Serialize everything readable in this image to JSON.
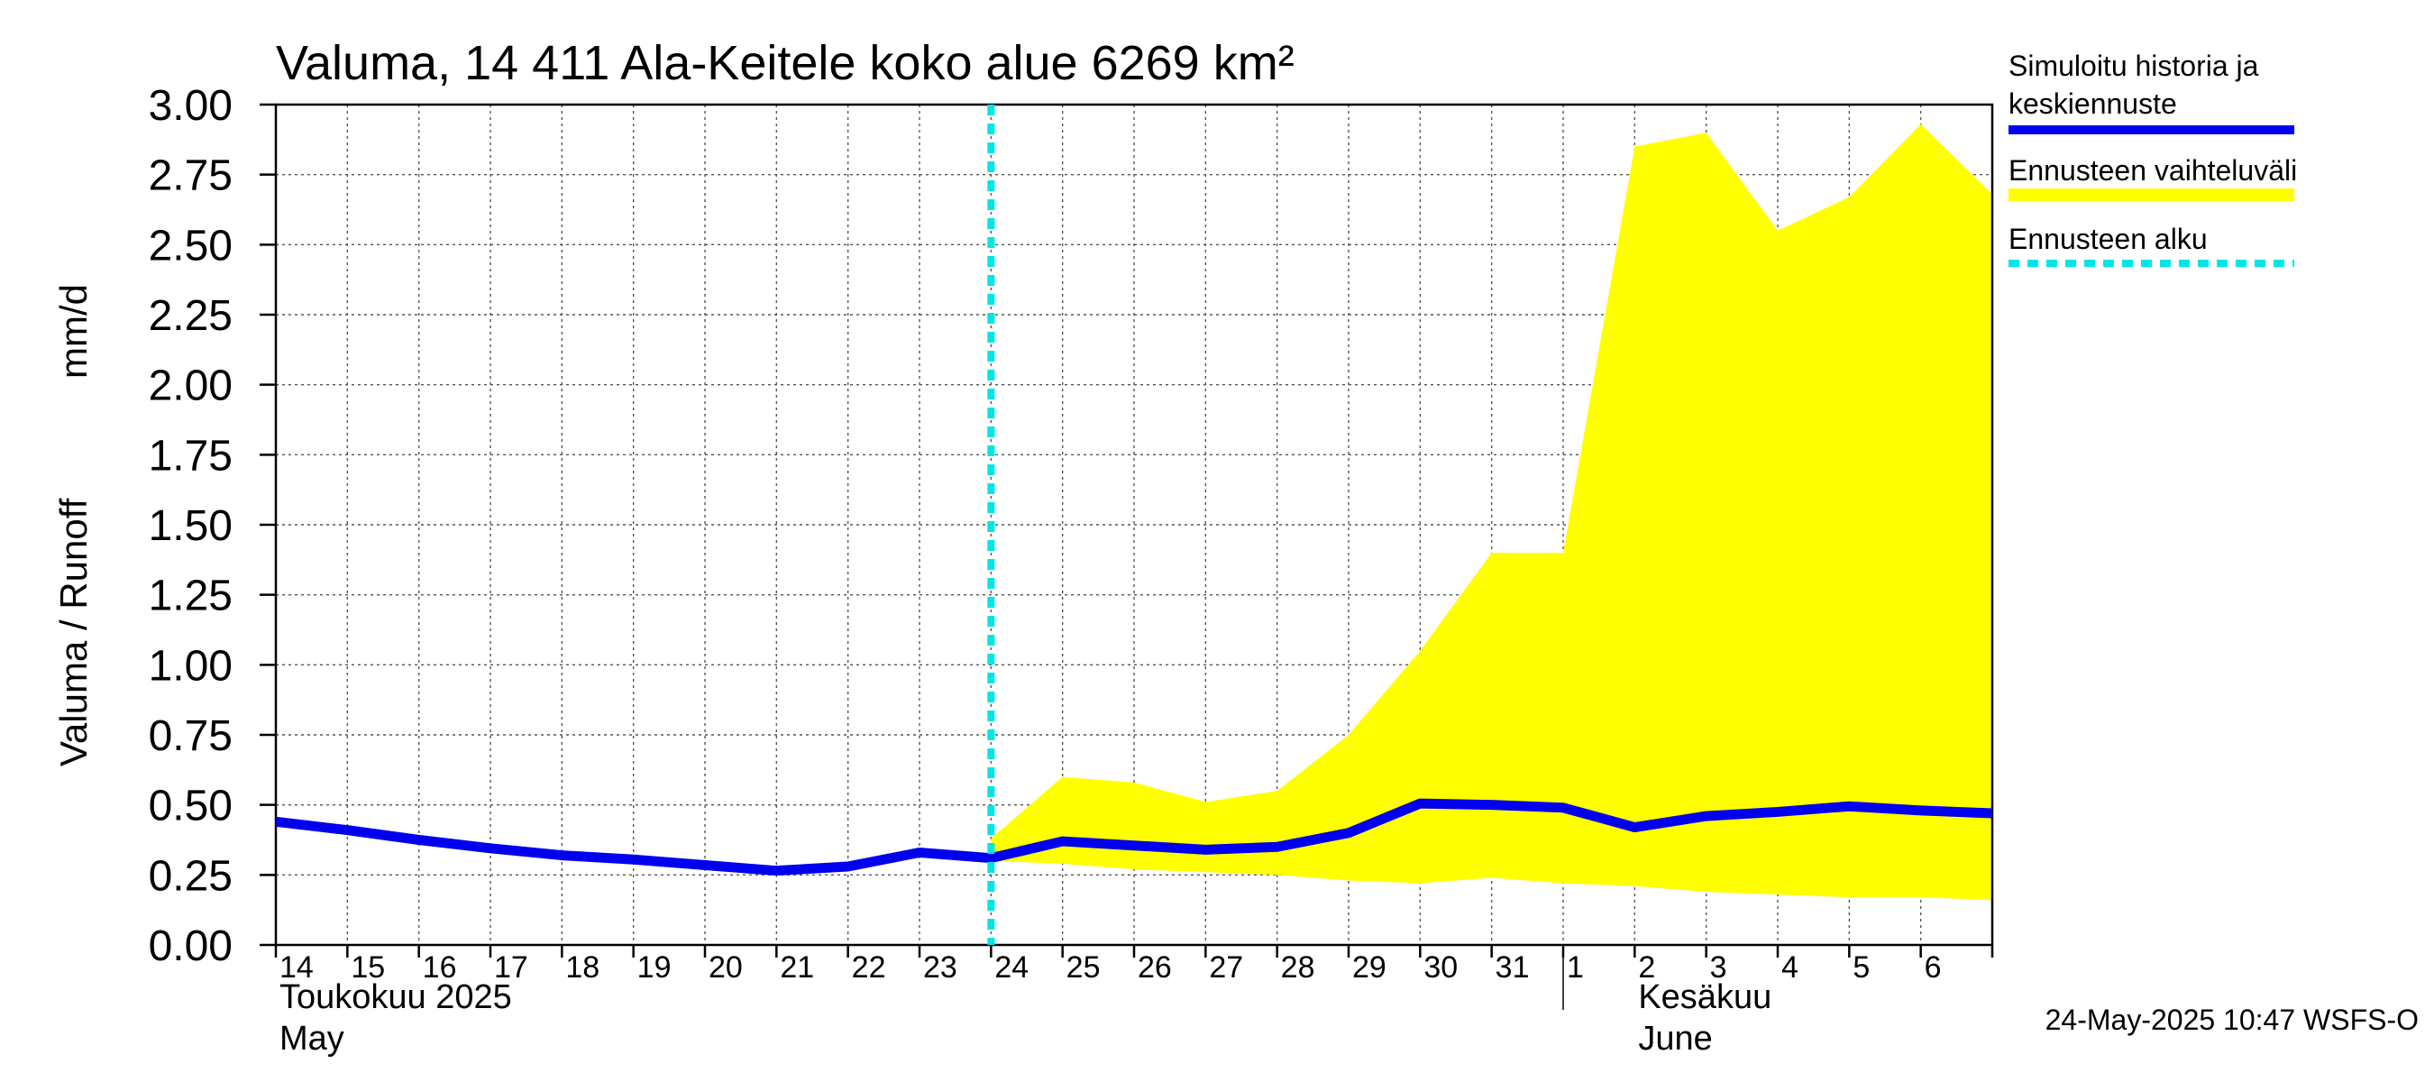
{
  "chart_data": {
    "type": "line",
    "title": "Valuma, 14 411 Ala-Keitele koko alue 6269 km²",
    "ylabel_left": "Valuma / Runoff",
    "ylabel_unit": "mm/d",
    "ylim": [
      0,
      3.0
    ],
    "yticks": [
      0.0,
      0.25,
      0.5,
      0.75,
      1.0,
      1.25,
      1.5,
      1.75,
      2.0,
      2.25,
      2.5,
      2.75,
      3.0
    ],
    "ytick_labels": [
      "0.00",
      "0.25",
      "0.50",
      "0.75",
      "1.00",
      "1.25",
      "1.50",
      "1.75",
      "2.00",
      "2.25",
      "2.50",
      "2.75",
      "3.00"
    ],
    "x_day_start": 0,
    "x_day_end": 24,
    "x_labels": [
      {
        "day": 0,
        "label": "14"
      },
      {
        "day": 1,
        "label": "15"
      },
      {
        "day": 2,
        "label": "16"
      },
      {
        "day": 3,
        "label": "17"
      },
      {
        "day": 4,
        "label": "18"
      },
      {
        "day": 5,
        "label": "19"
      },
      {
        "day": 6,
        "label": "20"
      },
      {
        "day": 7,
        "label": "21"
      },
      {
        "day": 8,
        "label": "22"
      },
      {
        "day": 9,
        "label": "23"
      },
      {
        "day": 10,
        "label": "24"
      },
      {
        "day": 11,
        "label": "25"
      },
      {
        "day": 12,
        "label": "26"
      },
      {
        "day": 13,
        "label": "27"
      },
      {
        "day": 14,
        "label": "28"
      },
      {
        "day": 15,
        "label": "29"
      },
      {
        "day": 16,
        "label": "30"
      },
      {
        "day": 17,
        "label": "31"
      },
      {
        "day": 18,
        "label": "1"
      },
      {
        "day": 19,
        "label": "2"
      },
      {
        "day": 20,
        "label": "3"
      },
      {
        "day": 21,
        "label": "4"
      },
      {
        "day": 22,
        "label": "5"
      },
      {
        "day": 23,
        "label": "6"
      }
    ],
    "month_labels": [
      {
        "fi": "Toukokuu  2025",
        "en": "May",
        "day": 0
      },
      {
        "fi": "Kesäkuu",
        "en": "June",
        "day": 19
      }
    ],
    "month_divider_day": 18,
    "forecast_start_day": 10,
    "series": [
      {
        "name": "Simuloitu historia ja keskiennuste",
        "color": "#0000ee",
        "x": [
          0,
          1,
          2,
          3,
          4,
          5,
          6,
          7,
          8,
          9,
          10,
          11,
          12,
          13,
          14,
          15,
          16,
          17,
          18,
          19,
          20,
          21,
          22,
          23,
          24
        ],
        "y": [
          0.44,
          0.41,
          0.375,
          0.345,
          0.32,
          0.305,
          0.285,
          0.265,
          0.28,
          0.33,
          0.31,
          0.37,
          0.355,
          0.34,
          0.35,
          0.4,
          0.505,
          0.5,
          0.49,
          0.42,
          0.46,
          0.475,
          0.495,
          0.48,
          0.47
        ]
      }
    ],
    "band": {
      "name": "Ennusteen vaihteluväli",
      "color": "#ffff00",
      "x": [
        10,
        11,
        12,
        13,
        14,
        15,
        16,
        17,
        18,
        19,
        20,
        21,
        22,
        23,
        24
      ],
      "upper": [
        0.38,
        0.6,
        0.58,
        0.51,
        0.55,
        0.75,
        1.05,
        1.4,
        1.4,
        2.85,
        2.9,
        2.55,
        2.67,
        2.93,
        2.68
      ],
      "lower": [
        0.3,
        0.29,
        0.27,
        0.26,
        0.25,
        0.23,
        0.22,
        0.24,
        0.22,
        0.21,
        0.19,
        0.18,
        0.17,
        0.17,
        0.16
      ]
    },
    "legend": [
      {
        "label_lines": [
          "Simuloitu historia ja",
          "keskiennuste"
        ],
        "color": "#0000ee",
        "style": "solid"
      },
      {
        "label_lines": [
          "Ennusteen vaihteluväli"
        ],
        "color": "#ffff00",
        "style": "solid"
      },
      {
        "label_lines": [
          "Ennusteen alku"
        ],
        "color": "#00e5e5",
        "style": "dashed"
      }
    ],
    "forecast_line_color": "#00e5e5",
    "grid": true,
    "footer": "24-May-2025 10:47 WSFS-O"
  }
}
